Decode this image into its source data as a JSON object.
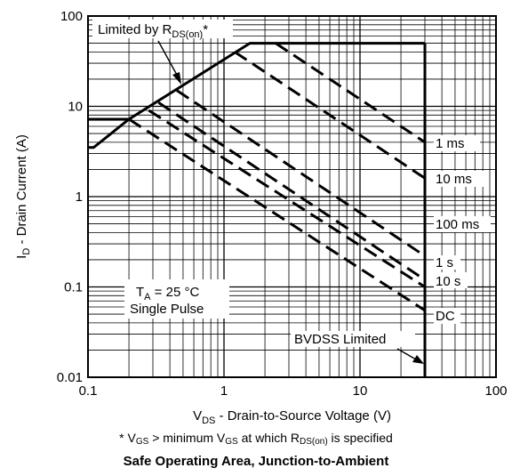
{
  "chart_data": {
    "type": "line",
    "title": "Safe Operating Area, Junction-to-Ambient",
    "footnote": {
      "pre": "* V",
      "vgs_sub": "GS",
      "mid": " > minimum V",
      "vgs_sub2": "GS",
      "mid2": " at which R",
      "rds_sub": "DS(on)",
      "post": " is specified"
    },
    "xlabel": {
      "main": "V",
      "sub": "DS",
      "rest": " - Drain-to-Source Voltage (V)"
    },
    "ylabel": {
      "main": "I",
      "sub": "D",
      "rest": " - Drain Current (A)"
    },
    "x_scale": "log",
    "y_scale": "log",
    "xlim": [
      0.1,
      100
    ],
    "ylim": [
      0.01,
      100
    ],
    "x_ticks": [
      "0.1",
      "1",
      "10",
      "100"
    ],
    "y_ticks": [
      "0.01",
      "0.1",
      "1",
      "10",
      "100"
    ],
    "grid": true,
    "series": [
      {
        "name": "Limited by RDS(on)",
        "style": "solid",
        "x": [
          0.1,
          0.11,
          0.2,
          1.55,
          30
        ],
        "y": [
          3.5,
          3.5,
          7.2,
          50,
          50
        ]
      },
      {
        "name": "1 ms",
        "style": "dashed",
        "x": [
          2.4,
          30
        ],
        "y": [
          50,
          4
        ]
      },
      {
        "name": "10 ms",
        "style": "dashed",
        "x": [
          1.2,
          30
        ],
        "y": [
          40,
          1.6
        ]
      },
      {
        "name": "100 ms",
        "style": "dashed",
        "x": [
          0.45,
          30
        ],
        "y": [
          15,
          0.22
        ]
      },
      {
        "name": "1 s",
        "style": "dashed",
        "x": [
          0.33,
          30
        ],
        "y": [
          11,
          0.12
        ]
      },
      {
        "name": "10 s",
        "style": "dashed",
        "x": [
          0.28,
          30
        ],
        "y": [
          9,
          0.1
        ]
      },
      {
        "name": "DC",
        "style": "dashed",
        "x": [
          0.2,
          30
        ],
        "y": [
          7.2,
          0.055
        ]
      },
      {
        "name": "BVDSS Limited",
        "style": "solid",
        "x": [
          30,
          30
        ],
        "y": [
          50,
          0.01
        ]
      }
    ],
    "annotations": {
      "rds_limit": {
        "pre": "Limited by R",
        "sub": "DS(on)",
        "post": "*"
      },
      "ta": {
        "pre": "T",
        "sub": "A",
        "post": " = 25 °C"
      },
      "pulse": "Single Pulse",
      "bvdss": "BVDSS Limited",
      "curve_labels": [
        "1 ms",
        "10 ms",
        "100 ms",
        "1 s",
        "10 s",
        "DC"
      ]
    }
  }
}
